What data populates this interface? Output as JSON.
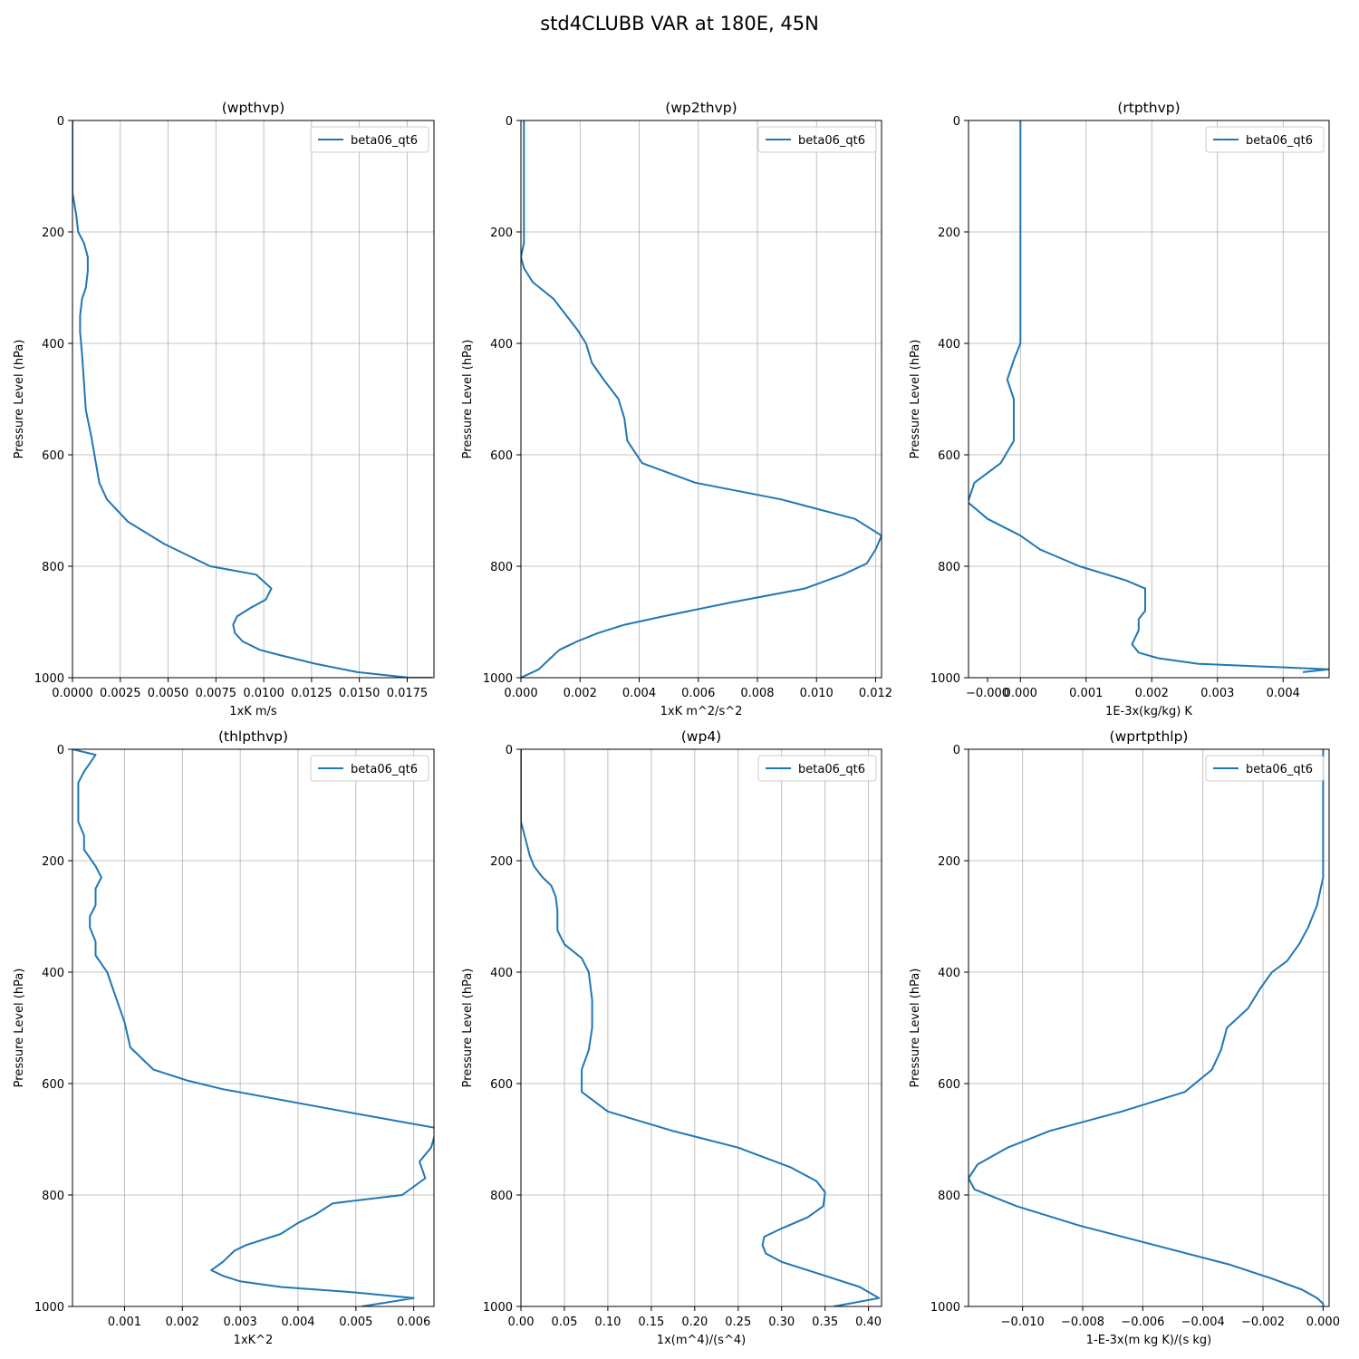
{
  "suptitle": "std4CLUBB VAR at 180E, 45N",
  "line_color": "#1f77b4",
  "chart_data": [
    {
      "type": "line",
      "title": "(wpthvp)",
      "xlabel": "1xK m/s",
      "ylabel": "Pressure Level (hPa)",
      "xlim": [
        0,
        0.0189
      ],
      "ylim": [
        1000,
        0
      ],
      "xticks": [
        0.0,
        0.0025,
        0.005,
        0.0075,
        0.01,
        0.0125,
        0.015,
        0.0175
      ],
      "xticklabels": [
        "0.0000",
        "0.0025",
        "0.0050",
        "0.0075",
        "0.0100",
        "0.0125",
        "0.0150",
        "0.0175"
      ],
      "yticks": [
        0,
        200,
        400,
        600,
        800,
        1000
      ],
      "yticklabels": [
        "0",
        "200",
        "400",
        "600",
        "800",
        "1000"
      ],
      "grid": true,
      "legend_loc": "upper right",
      "series": [
        {
          "name": "beta06_qt6",
          "x": [
            0.0,
            0.0,
            0.0001,
            0.0002,
            0.0003,
            0.0006,
            0.0008,
            0.0008,
            0.0007,
            0.0005,
            0.0004,
            0.0004,
            0.0005,
            0.0006,
            0.0007,
            0.001,
            0.0012,
            0.0014,
            0.0018,
            0.0029,
            0.0048,
            0.0072,
            0.0096,
            0.0104,
            0.0101,
            0.0093,
            0.0086,
            0.0084,
            0.0085,
            0.0089,
            0.0098,
            0.0109,
            0.0127,
            0.0149,
            0.0176,
            0.0188
          ],
          "y": [
            0,
            130,
            150,
            170,
            200,
            220,
            245,
            270,
            300,
            320,
            350,
            380,
            420,
            470,
            520,
            570,
            610,
            650,
            680,
            720,
            760,
            800,
            815,
            840,
            860,
            875,
            890,
            905,
            920,
            935,
            950,
            960,
            975,
            990,
            1000,
            1000
          ]
        }
      ]
    },
    {
      "type": "line",
      "title": "(wp2thvp)",
      "xlabel": "1xK m^2/s^2",
      "ylabel": "Pressure Level (hPa)",
      "xlim": [
        0,
        0.0122
      ],
      "ylim": [
        1000,
        0
      ],
      "xticks": [
        0.0,
        0.002,
        0.004,
        0.006,
        0.008,
        0.01,
        0.012
      ],
      "xticklabels": [
        "0.000",
        "0.002",
        "0.004",
        "0.006",
        "0.008",
        "0.010",
        "0.012"
      ],
      "yticks": [
        0,
        200,
        400,
        600,
        800,
        1000
      ],
      "yticklabels": [
        "0",
        "200",
        "400",
        "600",
        "800",
        "1000"
      ],
      "grid": true,
      "legend_loc": "upper right",
      "series": [
        {
          "name": "beta06_qt6",
          "x": [
            0.0001,
            0.0001,
            0.0001,
            0.0,
            0.0001,
            0.0004,
            0.0011,
            0.0019,
            0.0022,
            0.0024,
            0.0028,
            0.0033,
            0.0035,
            0.0036,
            0.0041,
            0.0059,
            0.0088,
            0.0113,
            0.0122,
            0.012,
            0.0117,
            0.0109,
            0.0096,
            0.0071,
            0.0048,
            0.0035,
            0.0026,
            0.0019,
            0.0013,
            0.001,
            0.0006,
            0.0,
            0.0
          ],
          "y": [
            0,
            150,
            220,
            245,
            265,
            290,
            320,
            375,
            400,
            435,
            465,
            500,
            535,
            575,
            615,
            650,
            680,
            715,
            745,
            770,
            795,
            815,
            840,
            865,
            890,
            905,
            920,
            935,
            950,
            965,
            985,
            1000,
            1000
          ]
        }
      ]
    },
    {
      "type": "line",
      "title": "(rtpthvp)",
      "xlabel": "1E-3x(kg/kg) K",
      "ylabel": "Pressure Level (hPa)",
      "xlim": [
        -0.00079,
        0.0047
      ],
      "ylim": [
        1000,
        0
      ],
      "xticks": [
        0.0,
        0.001,
        0.002,
        0.003,
        0.004
      ],
      "xticklabels": [
        "0.000",
        "0.001",
        "0.002",
        "0.003",
        "0.004"
      ],
      "xticks_minor_label": {
        "value": -0.0005,
        "label": "−0.000"
      },
      "yticks": [
        0,
        200,
        400,
        600,
        800,
        1000
      ],
      "yticklabels": [
        "0",
        "200",
        "400",
        "600",
        "800",
        "1000"
      ],
      "grid": true,
      "legend_loc": "upper right",
      "series": [
        {
          "name": "beta06_qt6",
          "x": [
            0.0,
            0.0,
            0.0,
            0.0,
            0.0,
            0.0,
            0.0,
            -0.0001,
            -0.0002,
            -0.0001,
            -0.0001,
            -0.0001,
            -0.0003,
            -0.0007,
            -0.0008,
            -0.0005,
            0.0,
            0.0003,
            0.0009,
            0.0016,
            0.0019,
            0.0019,
            0.0019,
            0.0018,
            0.0018,
            0.0017,
            0.0018,
            0.0021,
            0.0027,
            0.0047,
            0.0043
          ],
          "y": [
            0,
            140,
            220,
            280,
            300,
            340,
            400,
            430,
            465,
            500,
            540,
            575,
            615,
            650,
            685,
            715,
            745,
            770,
            800,
            825,
            840,
            860,
            880,
            895,
            915,
            940,
            955,
            965,
            975,
            985,
            990
          ]
        }
      ]
    },
    {
      "type": "line",
      "title": "(thlpthvp)",
      "xlabel": "1xK^2",
      "ylabel": "Pressure Level (hPa)",
      "xlim": [
        0.0001,
        0.00635
      ],
      "ylim": [
        1000,
        0
      ],
      "xticks": [
        0.001,
        0.002,
        0.003,
        0.004,
        0.005,
        0.006
      ],
      "xticklabels": [
        "0.001",
        "0.002",
        "0.003",
        "0.004",
        "0.005",
        "0.006"
      ],
      "yticks": [
        0,
        200,
        400,
        600,
        800,
        1000
      ],
      "yticklabels": [
        "0",
        "200",
        "400",
        "600",
        "800",
        "1000"
      ],
      "grid": true,
      "legend_loc": "upper right",
      "series": [
        {
          "name": "beta06_qt6",
          "x": [
            0.0001,
            0.0005,
            0.0004,
            0.0003,
            0.0002,
            0.0002,
            0.0002,
            0.0002,
            0.0003,
            0.0003,
            0.0004,
            0.0005,
            0.0006,
            0.0005,
            0.0005,
            0.0004,
            0.0004,
            0.0005,
            0.0005,
            0.0006,
            0.0007,
            0.0008,
            0.0009,
            0.001,
            0.0011,
            0.0015,
            0.0021,
            0.0027,
            0.0048,
            0.0064,
            0.0063,
            0.0061,
            0.0062,
            0.0058,
            0.0046,
            0.0043,
            0.004,
            0.0037,
            0.0031,
            0.0029,
            0.0027,
            0.0025,
            0.0027,
            0.003,
            0.0037,
            0.005,
            0.006,
            0.0051
          ],
          "y": [
            0,
            10,
            25,
            40,
            60,
            80,
            110,
            130,
            155,
            180,
            195,
            210,
            230,
            250,
            280,
            300,
            320,
            345,
            370,
            385,
            400,
            430,
            460,
            490,
            535,
            575,
            595,
            610,
            650,
            680,
            715,
            740,
            770,
            800,
            815,
            835,
            850,
            870,
            890,
            900,
            920,
            935,
            945,
            955,
            965,
            975,
            985,
            1000
          ]
        }
      ]
    },
    {
      "type": "line",
      "title": "(wp4)",
      "xlabel": "1x(m^4)/(s^4)",
      "ylabel": "Pressure Level (hPa)",
      "xlim": [
        0,
        0.415
      ],
      "ylim": [
        1000,
        0
      ],
      "xticks": [
        0.0,
        0.05,
        0.1,
        0.15,
        0.2,
        0.25,
        0.3,
        0.35,
        0.4
      ],
      "xticklabels": [
        "0.00",
        "0.05",
        "0.10",
        "0.15",
        "0.20",
        "0.25",
        "0.30",
        "0.35",
        "0.40"
      ],
      "yticks": [
        0,
        200,
        400,
        600,
        800,
        1000
      ],
      "yticklabels": [
        "0",
        "200",
        "400",
        "600",
        "800",
        "1000"
      ],
      "grid": true,
      "legend_loc": "upper right",
      "series": [
        {
          "name": "beta06_qt6",
          "x": [
            0.0,
            0.0,
            0.005,
            0.01,
            0.015,
            0.025,
            0.035,
            0.04,
            0.042,
            0.042,
            0.05,
            0.07,
            0.078,
            0.082,
            0.082,
            0.078,
            0.07,
            0.07,
            0.1,
            0.175,
            0.25,
            0.31,
            0.34,
            0.35,
            0.348,
            0.33,
            0.3,
            0.28,
            0.278,
            0.282,
            0.3,
            0.34,
            0.39,
            0.412,
            0.36
          ],
          "y": [
            0,
            130,
            160,
            190,
            210,
            230,
            245,
            265,
            290,
            325,
            350,
            375,
            400,
            450,
            500,
            540,
            575,
            615,
            650,
            685,
            715,
            750,
            775,
            795,
            820,
            840,
            860,
            875,
            890,
            905,
            920,
            940,
            965,
            985,
            1000
          ]
        }
      ]
    },
    {
      "type": "line",
      "title": "(wprtpthlp)",
      "xlabel": "1-E-3x(m kg K)/(s kg)",
      "ylabel": "Pressure Level (hPa)",
      "xlim": [
        -0.0118,
        0.0002
      ],
      "ylim": [
        1000,
        0
      ],
      "xticks": [
        -0.01,
        -0.008,
        -0.006,
        -0.004,
        -0.002,
        0.0
      ],
      "xticklabels": [
        "−0.010",
        "−0.008",
        "−0.006",
        "−0.004",
        "−0.002",
        "0.000"
      ],
      "yticks": [
        0,
        200,
        400,
        600,
        800,
        1000
      ],
      "yticklabels": [
        "0",
        "200",
        "400",
        "600",
        "800",
        "1000"
      ],
      "grid": true,
      "legend_loc": "upper right",
      "series": [
        {
          "name": "beta06_qt6",
          "x": [
            0.0,
            0.0,
            0.0,
            -0.0002,
            -0.0005,
            -0.0008,
            -0.0012,
            -0.0017,
            -0.0021,
            -0.0025,
            -0.0032,
            -0.0034,
            -0.0037,
            -0.0046,
            -0.0067,
            -0.0091,
            -0.0105,
            -0.0115,
            -0.0118,
            -0.0116,
            -0.0102,
            -0.0081,
            -0.0056,
            -0.0031,
            -0.0017,
            -0.0007,
            -0.0002,
            0.0,
            0.0
          ],
          "y": [
            0,
            100,
            230,
            280,
            320,
            350,
            380,
            400,
            430,
            465,
            500,
            540,
            575,
            615,
            650,
            685,
            715,
            745,
            770,
            790,
            820,
            855,
            890,
            925,
            950,
            970,
            985,
            995,
            1000
          ]
        }
      ]
    }
  ]
}
